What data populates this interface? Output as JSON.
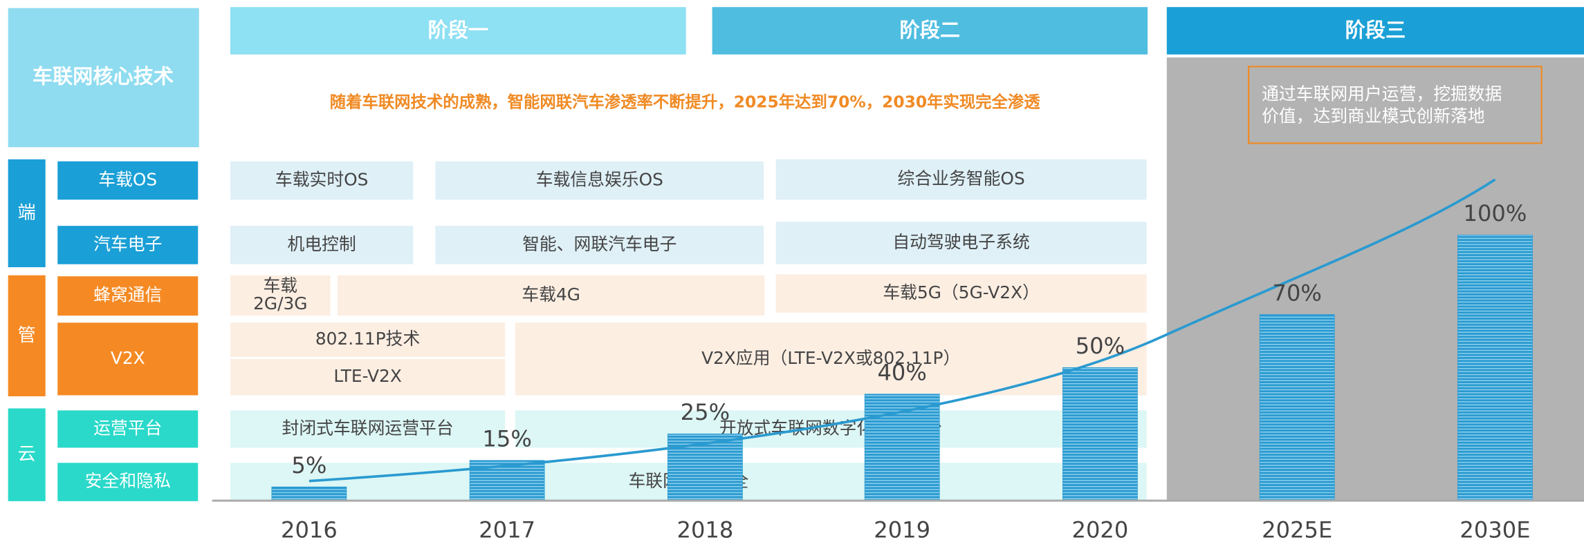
{
  "left_panel": {
    "title": "车联网核心技术",
    "groups": [
      {
        "label": "端",
        "rows": [
          "车载OS",
          "汽车电子"
        ]
      },
      {
        "label": "管",
        "rows": [
          "蜂窝通信",
          "V2X"
        ]
      },
      {
        "label": "云",
        "rows": [
          "运营平台",
          "安全和隐私"
        ]
      }
    ]
  },
  "stages": [
    "阶段一",
    "阶段二",
    "阶段三"
  ],
  "headline": "随着车联网技术的成熟，智能网联汽车渗透率不断提升，2025年达到70%，2030年实现完全渗透",
  "note": [
    "通过车联网用户运营，挖掘数据",
    "价值，达到商业模式创新落地"
  ],
  "cells": [
    [
      "车载实时OS"
    ],
    [
      "车载信息娱乐OS"
    ],
    [
      "综合业务智能OS"
    ],
    [
      "机电控制"
    ],
    [
      "智能、网联汽车电子"
    ],
    [
      "自动驾驶电子系统"
    ],
    [
      "车载",
      "2G/3G"
    ],
    [
      "车载4G"
    ],
    [
      "车载5G（5G-V2X）"
    ],
    [
      "802.11P技术"
    ],
    [
      "LTE-V2X"
    ],
    [
      "V2X应用（LTE-V2X或802.11P）"
    ],
    [
      "封闭式车联网运营平台"
    ],
    [
      "开放式车联网数字化运营平台"
    ],
    [
      "车联网信息安全"
    ]
  ],
  "chart_data": {
    "type": "bar",
    "categories": [
      "2016",
      "2017",
      "2018",
      "2019",
      "2020",
      "2025E",
      "2030E"
    ],
    "values": [
      5,
      15,
      25,
      40,
      50,
      70,
      100
    ],
    "value_labels": [
      "5%",
      "15%",
      "25%",
      "40%",
      "50%",
      "70%",
      "100%"
    ],
    "ylim": [
      0,
      100
    ],
    "color": "#2a9ad0"
  }
}
